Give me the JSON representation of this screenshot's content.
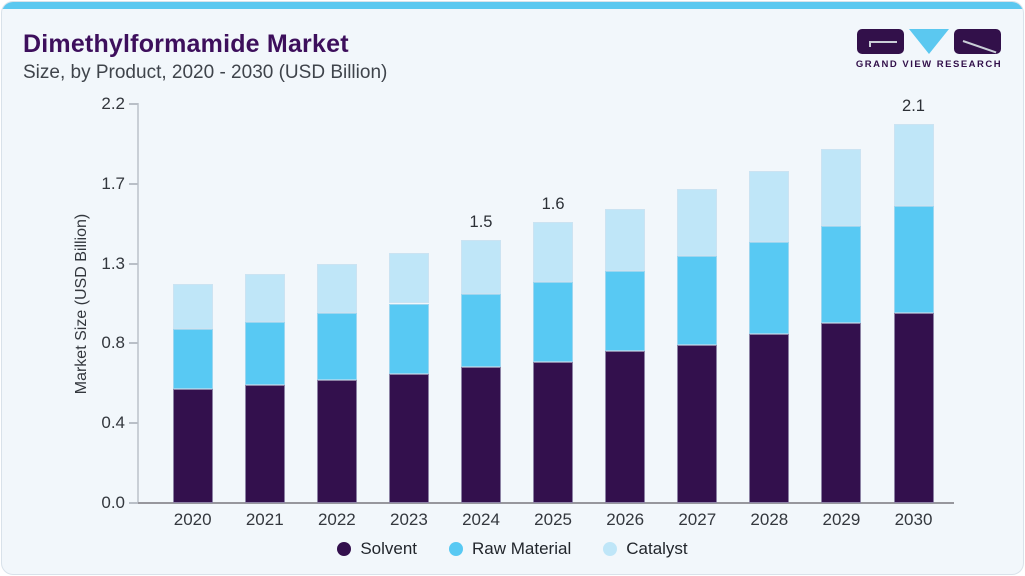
{
  "header": {
    "title": "Dimethylformamide Market",
    "subtitle": "Size, by Product, 2020 - 2030 (USD Billion)"
  },
  "brand": {
    "name": "GRAND VIEW RESEARCH",
    "logo_icons": [
      "g-square-icon",
      "v-triangle-icon",
      "r-square-icon"
    ]
  },
  "colors": {
    "accent_bar": "#5bc8f0",
    "title_purple": "#3d0f5c",
    "brand_purple": "#32104a",
    "brand_blue": "#5bc8f0",
    "card_background": "#f2f7fb"
  },
  "chart_data": {
    "type": "bar",
    "stacked": true,
    "title": "Dimethylformamide Market Size, by Product, 2020 - 2030 (USD Billion)",
    "categories": [
      "2020",
      "2021",
      "2022",
      "2023",
      "2024",
      "2025",
      "2026",
      "2027",
      "2028",
      "2029",
      "2030"
    ],
    "series": [
      {
        "name": "Solvent",
        "color": "#33104d",
        "values": [
          0.63,
          0.65,
          0.68,
          0.71,
          0.75,
          0.78,
          0.84,
          0.87,
          0.93,
          0.99,
          1.05
        ]
      },
      {
        "name": "Raw Material",
        "color": "#58c9f3",
        "values": [
          0.33,
          0.35,
          0.37,
          0.39,
          0.4,
          0.44,
          0.44,
          0.49,
          0.51,
          0.54,
          0.59
        ]
      },
      {
        "name": "Catalyst",
        "color": "#bfe6f8",
        "values": [
          0.25,
          0.26,
          0.27,
          0.28,
          0.3,
          0.33,
          0.34,
          0.37,
          0.39,
          0.42,
          0.45
        ]
      }
    ],
    "totals": [
      1.21,
      1.26,
      1.32,
      1.38,
      1.45,
      1.55,
      1.62,
      1.73,
      1.83,
      1.95,
      2.09
    ],
    "bar_total_labels": {
      "2024": "1.5",
      "2025": "1.6",
      "2030": "2.1"
    },
    "ylabel": "Market Size (USD Billion)",
    "ylim": [
      0,
      2.2
    ],
    "ytick_labels": [
      "0.0",
      "0.4",
      "0.8",
      "1.3",
      "1.7",
      "2.2"
    ],
    "grid": false,
    "legend_position": "bottom"
  }
}
